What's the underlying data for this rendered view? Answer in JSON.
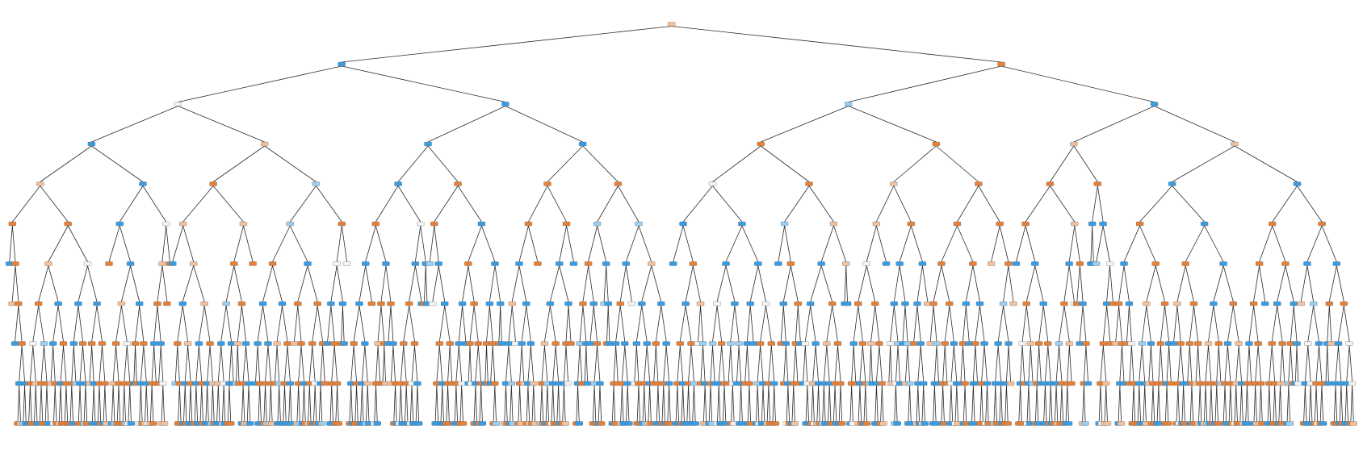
{
  "diagram": {
    "type": "decision-tree",
    "depth": 10,
    "leaf_colors": {
      "class_a": "#e58139",
      "class_b": "#399de5",
      "mixed_a": "#f2c09c",
      "mixed_b": "#9ccef2",
      "neutral": "#f4f4f4",
      "edge": "#2b2b2b",
      "node_border": "#555555"
    }
  }
}
